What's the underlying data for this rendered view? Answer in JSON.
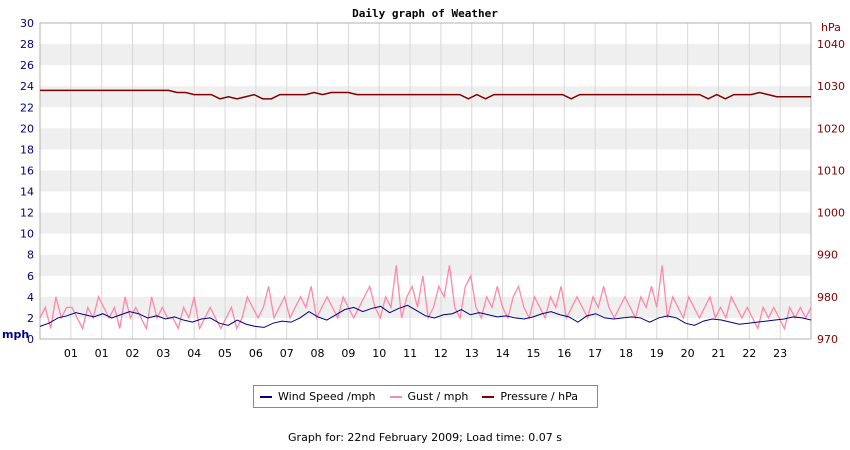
{
  "chart_data": {
    "type": "line",
    "title": "Daily graph of Weather",
    "left_axis": {
      "label": "mph",
      "ylim": [
        0,
        30
      ],
      "ticks": [
        "0",
        "2",
        "4",
        "6",
        "8",
        "10",
        "12",
        "14",
        "16",
        "18",
        "20",
        "22",
        "24",
        "26",
        "28",
        "30"
      ]
    },
    "right_axis": {
      "label": "hPa",
      "ylim": [
        970,
        1045
      ],
      "ticks": [
        "970",
        "980",
        "990",
        "1000",
        "1010",
        "1020",
        "1030",
        "1040"
      ]
    },
    "x_tick_labels": [
      "01",
      "01",
      "02",
      "03",
      "04",
      "05",
      "06",
      "07",
      "08",
      "09",
      "10",
      "11",
      "12",
      "13",
      "14",
      "15",
      "16",
      "17",
      "18",
      "19",
      "20",
      "21",
      "22",
      "23"
    ],
    "grid": true,
    "series": [
      {
        "name": "Wind Speed /mph",
        "color": "#000080",
        "values": [
          1.2,
          1.5,
          2.0,
          2.2,
          2.5,
          2.3,
          2.1,
          2.4,
          2.0,
          2.3,
          2.6,
          2.4,
          2.0,
          2.2,
          1.9,
          2.1,
          1.8,
          1.6,
          1.9,
          2.0,
          1.5,
          1.3,
          1.8,
          1.4,
          1.2,
          1.1,
          1.5,
          1.7,
          1.6,
          2.0,
          2.6,
          2.1,
          1.8,
          2.3,
          2.8,
          3.0,
          2.6,
          2.9,
          3.1,
          2.5,
          2.9,
          3.2,
          2.7,
          2.2,
          2.0,
          2.3,
          2.4,
          2.8,
          2.3,
          2.5,
          2.3,
          2.1,
          2.2,
          2.0,
          1.9,
          2.1,
          2.4,
          2.6,
          2.3,
          2.1,
          1.6,
          2.2,
          2.4,
          2.0,
          1.9,
          2.0,
          2.1,
          2.0,
          1.6,
          2.0,
          2.2,
          2.0,
          1.5,
          1.3,
          1.7,
          1.9,
          1.8,
          1.6,
          1.4,
          1.5,
          1.6,
          1.7,
          1.8,
          1.9,
          2.1,
          2.0,
          1.8
        ]
      },
      {
        "name": "Gust / mph",
        "color": "#ff88aa",
        "values": [
          2,
          3,
          1,
          4,
          2,
          3,
          3,
          2,
          1,
          3,
          2,
          4,
          3,
          2,
          3,
          1,
          4,
          2,
          3,
          2,
          1,
          4,
          2,
          3,
          2,
          2,
          1,
          3,
          2,
          4,
          1,
          2,
          3,
          2,
          1,
          2,
          3,
          1,
          2,
          4,
          3,
          2,
          3,
          5,
          2,
          3,
          4,
          2,
          3,
          4,
          3,
          5,
          2,
          3,
          4,
          3,
          2,
          4,
          3,
          2,
          3,
          4,
          5,
          3,
          2,
          4,
          3,
          7,
          2,
          4,
          5,
          3,
          6,
          2,
          3,
          5,
          4,
          7,
          3,
          2,
          5,
          6,
          3,
          2,
          4,
          3,
          5,
          3,
          2,
          4,
          5,
          3,
          2,
          4,
          3,
          2,
          4,
          3,
          5,
          2,
          3,
          4,
          3,
          2,
          4,
          3,
          5,
          3,
          2,
          3,
          4,
          3,
          2,
          4,
          3,
          5,
          3,
          7,
          2,
          4,
          3,
          2,
          4,
          3,
          2,
          3,
          4,
          2,
          3,
          2,
          4,
          3,
          2,
          3,
          2,
          1,
          3,
          2,
          3,
          2,
          1,
          3,
          2,
          3,
          2,
          3
        ]
      },
      {
        "name": "Pressure / hPa",
        "color": "#800000",
        "values": [
          1029,
          1029,
          1029,
          1029,
          1029,
          1029,
          1029,
          1029,
          1029,
          1029,
          1029,
          1029,
          1029,
          1029,
          1029,
          1029,
          1028.5,
          1028.5,
          1028,
          1028,
          1028,
          1027,
          1027.5,
          1027,
          1027.5,
          1028,
          1027,
          1027,
          1028,
          1028,
          1028,
          1028,
          1028.5,
          1028,
          1028.5,
          1028.5,
          1028.5,
          1028,
          1028,
          1028,
          1028,
          1028,
          1028,
          1028,
          1028,
          1028,
          1028,
          1028,
          1028,
          1028,
          1027,
          1028,
          1027,
          1028,
          1028,
          1028,
          1028,
          1028,
          1028,
          1028,
          1028,
          1028,
          1027,
          1028,
          1028,
          1028,
          1028,
          1028,
          1028,
          1028,
          1028,
          1028,
          1028,
          1028,
          1028,
          1028,
          1028,
          1028,
          1027,
          1028,
          1027,
          1028,
          1028,
          1028,
          1028.5,
          1028,
          1027.5,
          1027.5,
          1027.5,
          1027.5,
          1027.5
        ]
      }
    ]
  },
  "legend": {
    "wind_label": "Wind Speed /mph",
    "gust_label": "Gust / mph",
    "pressure_label": "Pressure / hPa"
  },
  "footer": {
    "text": "Graph for: 22nd February 2009; Load time: 0.07 s"
  }
}
